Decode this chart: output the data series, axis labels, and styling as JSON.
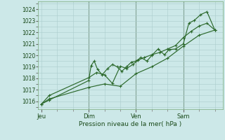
{
  "background_color": "#cce8e8",
  "grid_color": "#aacccc",
  "line_color": "#2d6a2d",
  "title": "Pression niveau de la mer( hPa )",
  "xlabel_day_labels": [
    "Jeu",
    "Dim",
    "Ven",
    "Sam"
  ],
  "xlabel_day_positions": [
    0.0,
    3.0,
    6.0,
    9.0
  ],
  "ylim": [
    1015.3,
    1024.7
  ],
  "yticks": [
    1016,
    1017,
    1018,
    1019,
    1020,
    1021,
    1022,
    1023,
    1024
  ],
  "xlim": [
    -0.2,
    11.5
  ],
  "vline_positions": [
    3.0,
    6.0,
    9.0
  ],
  "series1_x": [
    0.0,
    0.5,
    3.0,
    3.15,
    3.35,
    3.55,
    3.85,
    4.2,
    4.5,
    4.8,
    5.1,
    5.4,
    5.7,
    6.0,
    6.3,
    6.7,
    7.0,
    7.4,
    7.8,
    8.1,
    8.5,
    9.0,
    9.35,
    9.7,
    10.1,
    10.5,
    11.0
  ],
  "series1_y": [
    1015.75,
    1016.1,
    1017.8,
    1019.1,
    1019.5,
    1018.8,
    1018.3,
    1018.85,
    1019.2,
    1019.0,
    1018.6,
    1019.0,
    1019.4,
    1019.5,
    1019.8,
    1019.5,
    1020.0,
    1020.55,
    1020.05,
    1020.5,
    1020.55,
    1021.0,
    1022.8,
    1023.05,
    1023.55,
    1023.8,
    1022.2
  ],
  "series2_x": [
    0.0,
    0.5,
    3.0,
    3.5,
    4.0,
    4.5,
    5.0,
    5.4,
    5.8,
    6.1,
    6.5,
    7.0,
    7.5,
    8.0,
    8.5,
    9.0,
    9.5,
    10.0,
    10.5,
    11.0
  ],
  "series2_y": [
    1015.75,
    1016.5,
    1018.05,
    1018.5,
    1018.3,
    1017.55,
    1019.05,
    1018.85,
    1019.2,
    1019.55,
    1019.8,
    1020.05,
    1020.25,
    1020.55,
    1020.85,
    1021.55,
    1022.1,
    1022.55,
    1022.8,
    1022.2
  ],
  "series3_x": [
    0.0,
    0.5,
    3.0,
    4.0,
    5.0,
    6.0,
    7.0,
    8.0,
    9.0,
    10.0,
    11.0
  ],
  "series3_y": [
    1015.75,
    1016.2,
    1017.2,
    1017.5,
    1017.3,
    1018.4,
    1019.0,
    1019.75,
    1020.8,
    1021.75,
    1022.2
  ]
}
